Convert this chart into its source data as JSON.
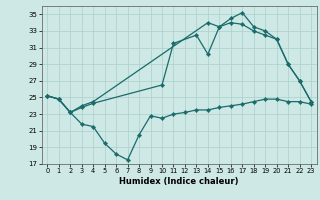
{
  "xlabel": "Humidex (Indice chaleur)",
  "bg_color": "#cde8e5",
  "grid_color": "#aad0cc",
  "line_color": "#1a6b6b",
  "ylim": [
    17,
    36
  ],
  "xlim": [
    -0.5,
    23.5
  ],
  "yticks": [
    17,
    19,
    21,
    23,
    25,
    27,
    29,
    31,
    33,
    35
  ],
  "xticks": [
    0,
    1,
    2,
    3,
    4,
    5,
    6,
    7,
    8,
    9,
    10,
    11,
    12,
    13,
    14,
    15,
    16,
    17,
    18,
    19,
    20,
    21,
    22,
    23
  ],
  "line1_x": [
    0,
    1,
    2,
    3,
    4,
    14,
    15,
    16,
    17,
    18,
    19,
    20,
    21,
    22,
    23
  ],
  "line1_y": [
    25.2,
    24.8,
    23.2,
    24.0,
    24.5,
    34.0,
    33.5,
    34.5,
    35.2,
    33.5,
    33.0,
    32.0,
    29.0,
    27.0,
    24.5
  ],
  "line2_x": [
    0,
    1,
    2,
    3,
    4,
    10,
    11,
    13,
    14,
    15,
    16,
    17,
    18,
    19,
    20,
    21,
    22,
    23
  ],
  "line2_y": [
    25.2,
    24.8,
    23.2,
    23.8,
    24.3,
    26.5,
    31.5,
    32.5,
    30.2,
    33.5,
    34.0,
    33.8,
    33.0,
    32.5,
    32.0,
    29.0,
    27.0,
    24.5
  ],
  "line3_x": [
    0,
    1,
    2,
    3,
    4,
    5,
    6,
    7,
    8,
    9,
    10,
    11,
    12,
    13,
    14,
    15,
    16,
    17,
    18,
    19,
    20,
    21,
    22,
    23
  ],
  "line3_y": [
    25.2,
    24.8,
    23.2,
    21.8,
    21.5,
    19.5,
    18.2,
    17.5,
    20.5,
    22.8,
    22.5,
    23.0,
    23.2,
    23.5,
    23.5,
    23.8,
    24.0,
    24.2,
    24.5,
    24.8,
    24.8,
    24.5,
    24.5,
    24.2
  ]
}
